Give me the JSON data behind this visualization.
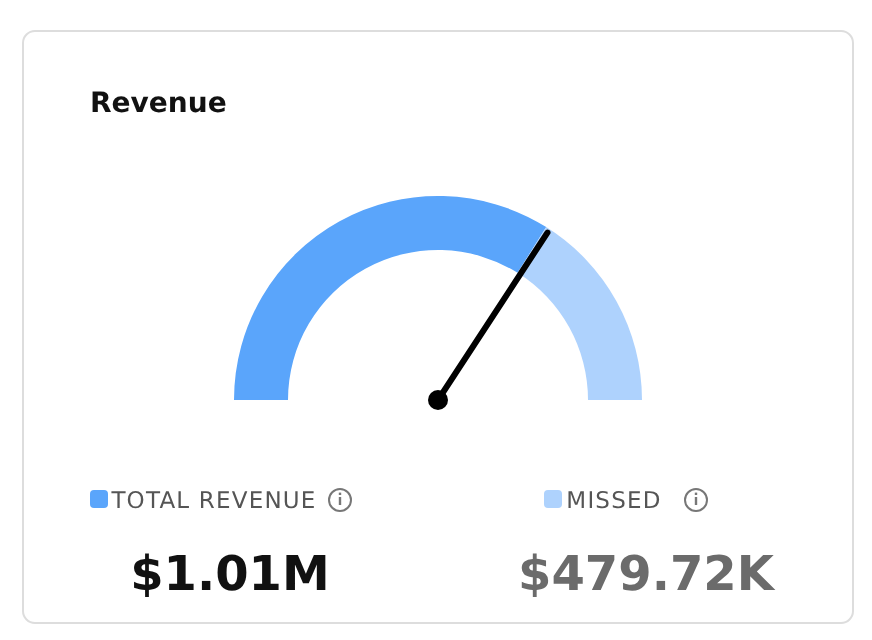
{
  "chart_data": {
    "type": "donut",
    "title": "Revenue",
    "categories": [
      "TOTAL REVENUE",
      "MISSED"
    ],
    "values": [
      1010000,
      479720
    ],
    "value_labels": [
      "$1.01M",
      "$479.72K"
    ],
    "colors": [
      "#5aa5fb",
      "#aed2fd"
    ],
    "needle": "MISSED",
    "legend": "bottom"
  }
}
